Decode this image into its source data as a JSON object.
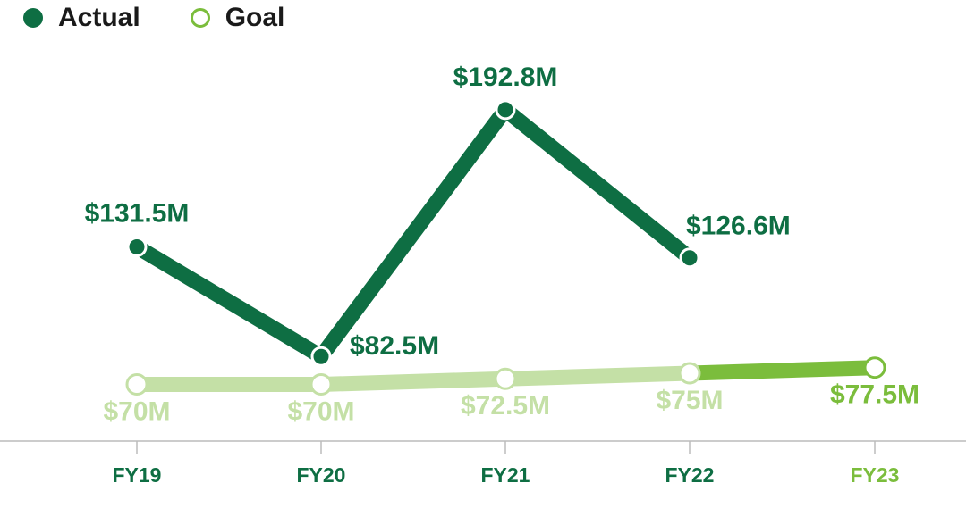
{
  "colors": {
    "actual": "#0e6e43",
    "goal_past": "#c4e0a6",
    "goal_current": "#7bbd3c",
    "axis": "#bcbcbc",
    "tick_text_past": "#0e6e43",
    "tick_text_current": "#7bbd3c"
  },
  "legend": {
    "actual_label": "Actual",
    "goal_label": "Goal"
  },
  "chart_data": {
    "type": "line",
    "categories": [
      "FY19",
      "FY20",
      "FY21",
      "FY22",
      "FY23"
    ],
    "series": [
      {
        "name": "Actual",
        "values": [
          131.5,
          82.5,
          192.8,
          126.6,
          null
        ],
        "labels": [
          "$131.5M",
          "$82.5M",
          "$192.8M",
          "$126.6M",
          ""
        ]
      },
      {
        "name": "Goal",
        "values": [
          70,
          70,
          72.5,
          75,
          77.5
        ],
        "labels": [
          "$70M",
          "$70M",
          "$72.5M",
          "$75M",
          "$77.5M"
        ]
      }
    ],
    "units": "$ millions",
    "grid": false,
    "legend_position": "top-left"
  }
}
